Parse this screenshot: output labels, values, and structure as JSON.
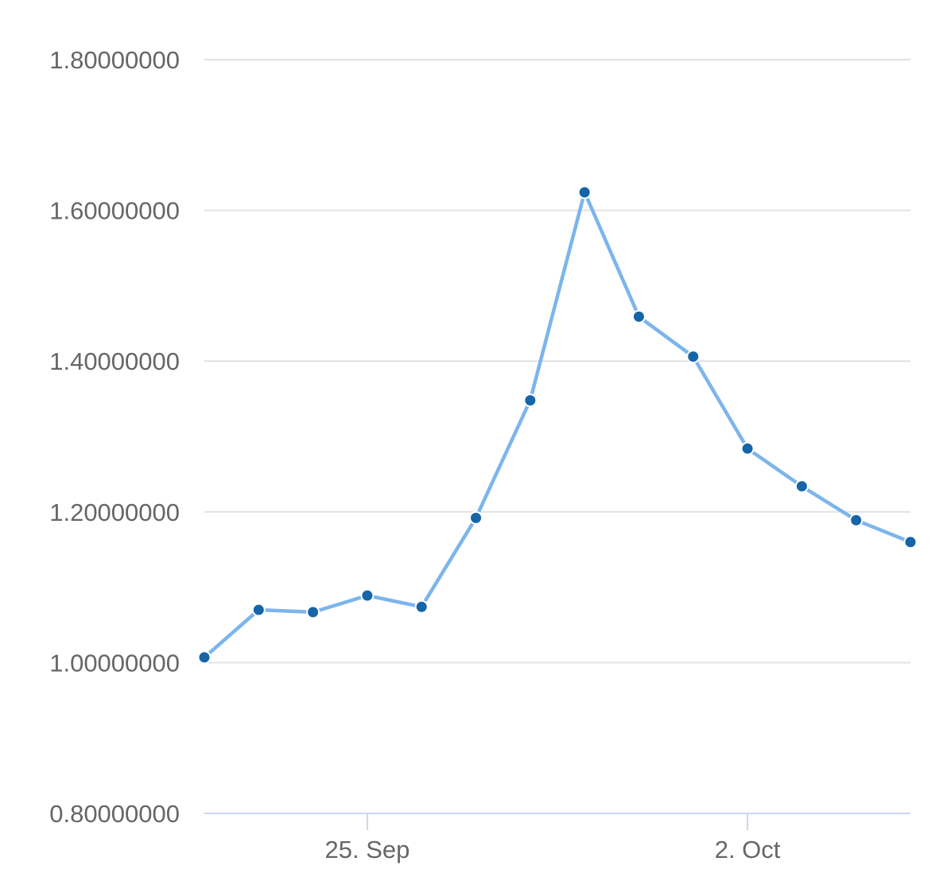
{
  "chart_data": {
    "type": "line",
    "title": "",
    "xlabel": "",
    "ylabel": "",
    "ylim": [
      0.8,
      1.8
    ],
    "y_ticks": [
      0.8,
      1.0,
      1.2,
      1.4,
      1.6,
      1.8
    ],
    "y_tick_labels": [
      "0.80000000",
      "1.00000000",
      "1.20000000",
      "1.40000000",
      "1.60000000",
      "1.80000000"
    ],
    "xlim": [
      "2023-09-22",
      "2023-10-05"
    ],
    "x_ticks": [
      "2023-09-25",
      "2023-10-02"
    ],
    "x_tick_labels": [
      "25. Sep",
      "2. Oct"
    ],
    "grid": true,
    "legend": "none",
    "colors": {
      "line": "#7cb5ec",
      "point": "#1565a8",
      "grid": "#e1e1e6",
      "axis": "#ccd6eb",
      "text": "#666666"
    },
    "series": [
      {
        "x": [
          "2023-09-22",
          "2023-09-23",
          "2023-09-24",
          "2023-09-25",
          "2023-09-26",
          "2023-09-27",
          "2023-09-28",
          "2023-09-29",
          "2023-09-30",
          "2023-10-01",
          "2023-10-02",
          "2023-10-03",
          "2023-10-04",
          "2023-10-05"
        ],
        "values": [
          1.007,
          1.07,
          1.067,
          1.089,
          1.074,
          1.192,
          1.348,
          1.624,
          1.459,
          1.406,
          1.284,
          1.234,
          1.189,
          1.16
        ]
      }
    ]
  }
}
